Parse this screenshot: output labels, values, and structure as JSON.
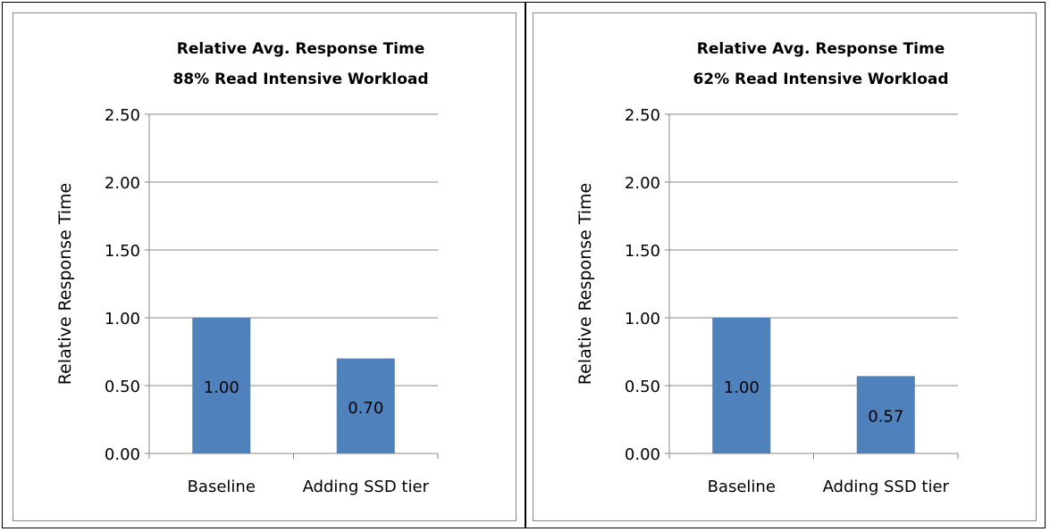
{
  "chart_data": [
    {
      "type": "bar",
      "title": "Relative Avg. Response Time",
      "subtitle": "88% Read Intensive Workload",
      "xlabel": "",
      "ylabel": "Relative Response Time",
      "categories": [
        "Baseline",
        "Adding  SSD  tier"
      ],
      "values": [
        1.0,
        0.7
      ],
      "data_labels": [
        "1.00",
        "0.70"
      ],
      "ylim": [
        0,
        2.5
      ],
      "yticks": [
        "0.00",
        "0.50",
        "1.00",
        "1.50",
        "2.00",
        "2.50"
      ],
      "grid": true,
      "legend": "none",
      "bar_color": "#4f81bd"
    },
    {
      "type": "bar",
      "title": "Relative Avg. Response Time",
      "subtitle": "62% Read Intensive Workload",
      "xlabel": "",
      "ylabel": "Relative Response Time",
      "categories": [
        "Baseline",
        "Adding  SSD  tier"
      ],
      "values": [
        1.0,
        0.57
      ],
      "data_labels": [
        "1.00",
        "0.57"
      ],
      "ylim": [
        0,
        2.5
      ],
      "yticks": [
        "0.00",
        "0.50",
        "1.00",
        "1.50",
        "2.00",
        "2.50"
      ],
      "grid": true,
      "legend": "none",
      "bar_color": "#4f81bd"
    }
  ]
}
